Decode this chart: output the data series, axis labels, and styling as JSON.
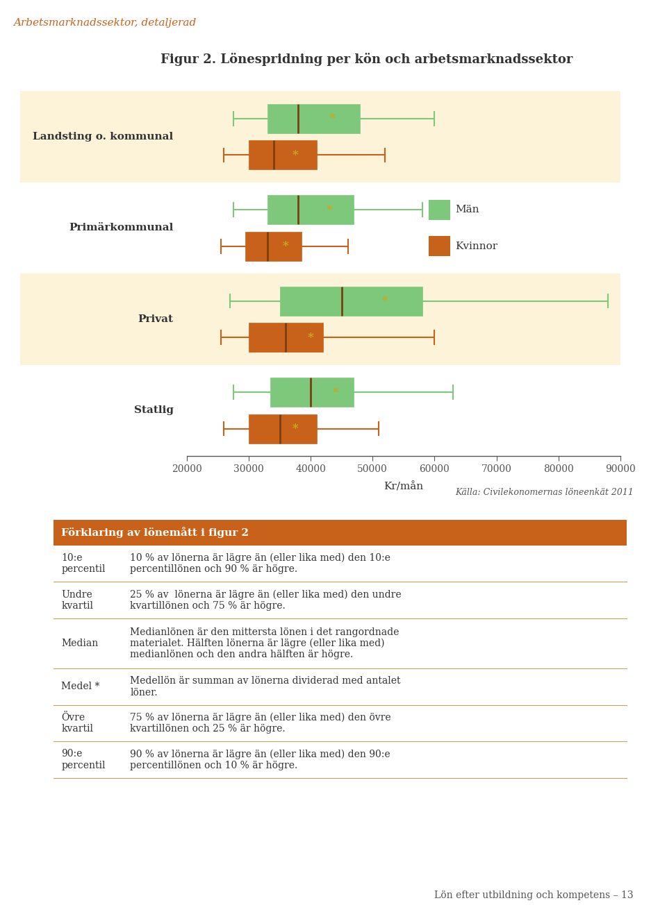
{
  "title": "Figur 2. Lönespridning per kön och arbetsmarknadssektor",
  "header": "Arbetsmarknadssektor, detaljerad",
  "xlabel": "Kr/mån",
  "source": "Källa: Civilekonomernas löneenkät 2011",
  "footer": "Lön efter utbildning och kompetens – 13",
  "xlim": [
    20000,
    90000
  ],
  "xticks": [
    20000,
    30000,
    40000,
    50000,
    60000,
    70000,
    80000,
    90000
  ],
  "color_men": "#7dc87a",
  "color_women": "#c8621a",
  "color_bg_shaded": "#fdf3d8",
  "color_bg_white": "#ffffff",
  "color_header": "#c8621a",
  "color_table_header_bg": "#c8621a",
  "color_median_line": "#7a4010",
  "color_mean_star": "#c8a820",
  "color_table_line": "#c8a060",
  "groups": [
    {
      "label": "Landsting o. kommunal",
      "shaded": true,
      "men": {
        "p10": 27500,
        "q1": 33000,
        "median": 38000,
        "mean": 43500,
        "q3": 48000,
        "p90": 60000
      },
      "women": {
        "p10": 26000,
        "q1": 30000,
        "median": 34000,
        "mean": 37500,
        "q3": 41000,
        "p90": 52000
      }
    },
    {
      "label": "Primärkommunal",
      "shaded": false,
      "men": {
        "p10": 27500,
        "q1": 33000,
        "median": 38000,
        "mean": 43000,
        "q3": 47000,
        "p90": 58000
      },
      "women": {
        "p10": 25500,
        "q1": 29500,
        "median": 33000,
        "mean": 36000,
        "q3": 38500,
        "p90": 46000
      }
    },
    {
      "label": "Privat",
      "shaded": true,
      "men": {
        "p10": 27000,
        "q1": 35000,
        "median": 45000,
        "mean": 52000,
        "q3": 58000,
        "p90": 88000
      },
      "women": {
        "p10": 25500,
        "q1": 30000,
        "median": 36000,
        "mean": 40000,
        "q3": 42000,
        "p90": 60000
      }
    },
    {
      "label": "Statlig",
      "shaded": false,
      "men": {
        "p10": 27500,
        "q1": 33500,
        "median": 40000,
        "mean": 44000,
        "q3": 47000,
        "p90": 63000
      },
      "women": {
        "p10": 26000,
        "q1": 30000,
        "median": 35000,
        "mean": 37500,
        "q3": 41000,
        "p90": 51000
      }
    }
  ],
  "table_title": "Förklaring av lönemått i figur 2",
  "table_rows": [
    [
      "10:e\npercentil",
      "10 % av lönerna är lägre än (eller lika med) den 10:e\npercentillönen och 90 % är högre."
    ],
    [
      "Undre\nkvartil",
      "25 % av  lönerna är lägre än (eller lika med) den undre\nkvartillönen och 75 % är högre."
    ],
    [
      "Median",
      "Medianlönen är den mittersta lönen i det rangordnade\nmaterialet. Hälften lönerna är lägre (eller lika med)\nmedianlönen och den andra hälften är högre."
    ],
    [
      "Medel *",
      "Medellön är summan av lönerna dividerad med antalet\nlöner."
    ],
    [
      "Övre\nkvartil",
      "75 % av lönerna är lägre än (eller lika med) den övre\nkvartillönen och 25 % är högre."
    ],
    [
      "90:e\npercentil",
      "90 % av lönerna är lägre än (eller lika med) den 90:e\npercentillönen och 10 % är högre."
    ]
  ]
}
